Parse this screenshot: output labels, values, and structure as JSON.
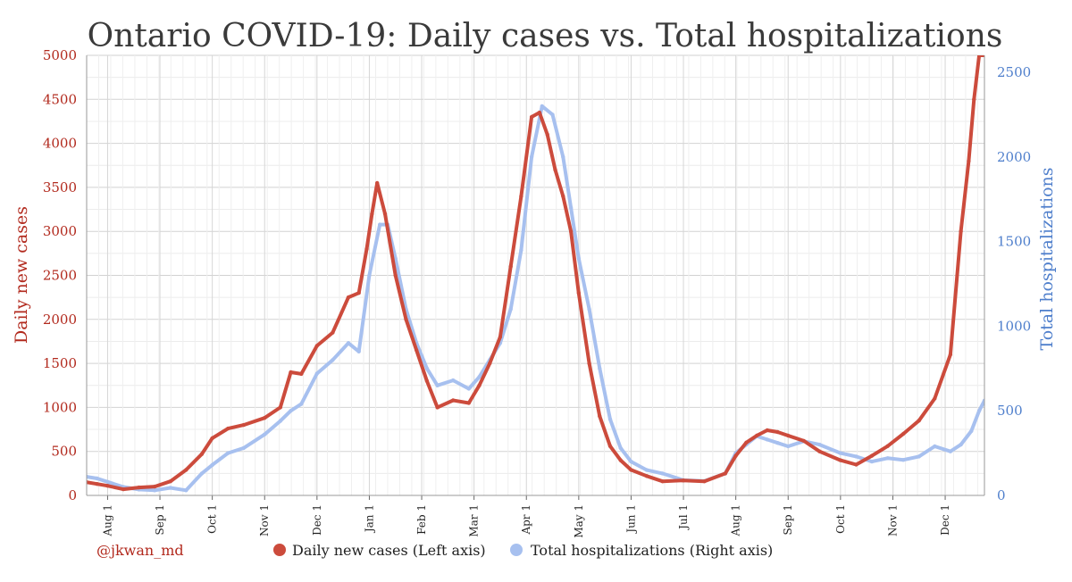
{
  "chart_data": {
    "type": "line",
    "title": "Ontario COVID-19: Daily cases vs. Total hospitalizations",
    "ylabel_left": "Daily new cases",
    "ylabel_right": "Total hospitalizations",
    "ylim_left": [
      0,
      5000
    ],
    "ylim_right": [
      0,
      2600
    ],
    "yticks_left": [
      0,
      500,
      1000,
      1500,
      2000,
      2500,
      3000,
      3500,
      4000,
      4500,
      5000
    ],
    "yticks_right": [
      0,
      500,
      1000,
      1500,
      2000,
      2500
    ],
    "x_tick_labels": [
      "Aug 1",
      "Sep 1",
      "Oct 1",
      "Nov 1",
      "Dec 1",
      "Jan 1",
      "Feb 1",
      "Mar 1",
      "Apr 1",
      "May 1",
      "Jun 1",
      "Jul 1",
      "Aug 1",
      "Sep 1",
      "Oct 1",
      "Nov 1",
      "Dec 1"
    ],
    "x_ticks_index": [
      0,
      1,
      2,
      3,
      4,
      5,
      6,
      7,
      8,
      9,
      10,
      11,
      12,
      13,
      14,
      15,
      16
    ],
    "x_range": [
      -0.4,
      16.75
    ],
    "grid": true,
    "legend_position": "bottom",
    "series": [
      {
        "name": "Daily new cases (Left axis)",
        "axis": "left",
        "color": "#cc4b3c",
        "x": [
          -0.4,
          -0.2,
          0.0,
          0.3,
          0.6,
          0.9,
          1.2,
          1.5,
          1.8,
          2.0,
          2.3,
          2.6,
          3.0,
          3.3,
          3.5,
          3.7,
          4.0,
          4.3,
          4.6,
          4.8,
          4.95,
          5.05,
          5.15,
          5.3,
          5.5,
          5.7,
          5.9,
          6.1,
          6.3,
          6.6,
          6.9,
          7.1,
          7.3,
          7.5,
          7.7,
          7.9,
          8.1,
          8.25,
          8.4,
          8.55,
          8.7,
          8.85,
          9.0,
          9.2,
          9.4,
          9.6,
          9.8,
          10.0,
          10.3,
          10.6,
          11.0,
          11.4,
          11.8,
          12.0,
          12.2,
          12.4,
          12.6,
          12.8,
          13.0,
          13.3,
          13.6,
          14.0,
          14.3,
          14.6,
          14.9,
          15.2,
          15.5,
          15.8,
          16.1,
          16.3,
          16.45,
          16.55,
          16.65,
          16.75
        ],
        "values": [
          150,
          130,
          110,
          70,
          90,
          100,
          160,
          290,
          470,
          650,
          760,
          800,
          880,
          1000,
          1400,
          1380,
          1700,
          1850,
          2250,
          2300,
          2800,
          3200,
          3550,
          3200,
          2500,
          2000,
          1650,
          1300,
          1000,
          1080,
          1050,
          1250,
          1500,
          1800,
          2600,
          3400,
          4300,
          4350,
          4100,
          3700,
          3400,
          3000,
          2300,
          1500,
          900,
          560,
          400,
          290,
          220,
          160,
          170,
          160,
          250,
          450,
          600,
          680,
          740,
          720,
          680,
          620,
          500,
          400,
          350,
          450,
          560,
          700,
          850,
          1100,
          1600,
          3000,
          3800,
          4500,
          5000,
          5000
        ]
      },
      {
        "name": "Total hospitalizations (Right axis)",
        "axis": "right",
        "color": "#a7c0ef",
        "x": [
          -0.4,
          -0.2,
          0.0,
          0.3,
          0.6,
          0.9,
          1.2,
          1.5,
          1.8,
          2.0,
          2.3,
          2.6,
          3.0,
          3.3,
          3.5,
          3.7,
          4.0,
          4.3,
          4.6,
          4.8,
          5.0,
          5.2,
          5.35,
          5.5,
          5.7,
          5.9,
          6.1,
          6.3,
          6.6,
          6.9,
          7.1,
          7.3,
          7.5,
          7.7,
          7.9,
          8.1,
          8.3,
          8.5,
          8.7,
          8.85,
          9.0,
          9.2,
          9.4,
          9.6,
          9.8,
          10.0,
          10.3,
          10.6,
          11.0,
          11.4,
          11.8,
          12.0,
          12.2,
          12.4,
          12.6,
          12.8,
          13.0,
          13.3,
          13.6,
          14.0,
          14.3,
          14.6,
          14.9,
          15.2,
          15.5,
          15.8,
          16.1,
          16.3,
          16.5,
          16.65,
          16.75
        ],
        "values": [
          110,
          100,
          80,
          50,
          35,
          30,
          45,
          30,
          130,
          180,
          250,
          280,
          360,
          440,
          500,
          540,
          720,
          800,
          900,
          850,
          1300,
          1600,
          1600,
          1400,
          1100,
          900,
          750,
          650,
          680,
          630,
          700,
          800,
          900,
          1100,
          1450,
          2000,
          2300,
          2250,
          2000,
          1700,
          1400,
          1100,
          750,
          450,
          280,
          200,
          150,
          130,
          90,
          85,
          130,
          250,
          300,
          350,
          330,
          310,
          290,
          320,
          300,
          250,
          230,
          200,
          220,
          210,
          230,
          290,
          260,
          300,
          380,
          500,
          560
        ]
      }
    ]
  },
  "credit": "@jkwan_md",
  "legend": [
    {
      "label": "Daily new cases (Left axis)",
      "color": "#cc4b3c"
    },
    {
      "label": "Total hospitalizations (Right axis)",
      "color": "#a7c0ef"
    }
  ]
}
